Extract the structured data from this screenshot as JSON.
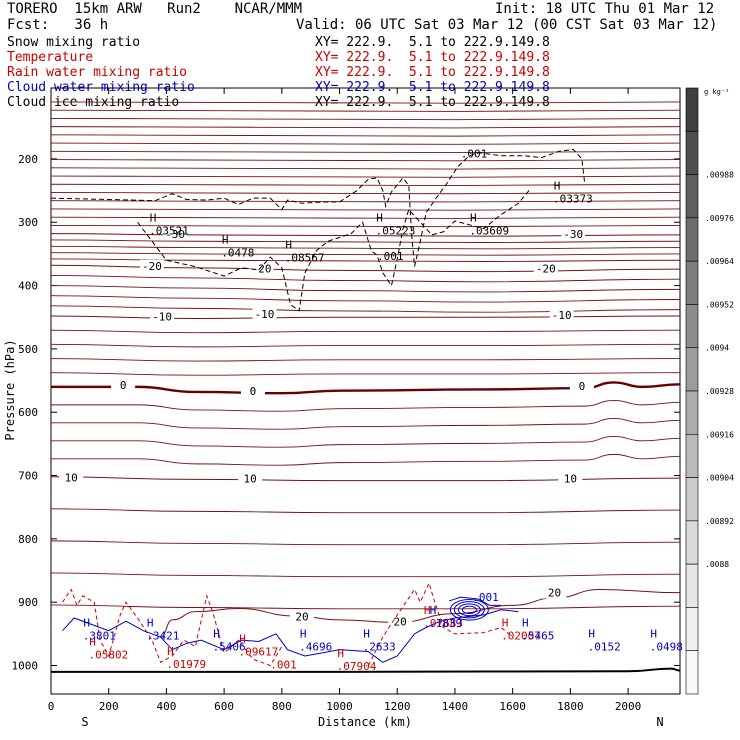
{
  "header": {
    "model": "TORERO  15km ARW   Run2    NCAR/MMM",
    "init": "Init: 18 UTC Thu 01 Mar 12",
    "fcst": "Fcst:   36 h",
    "valid": "Valid: 06 UTC Sat 03 Mar 12 (00 CST Sat 03 Mar 12)"
  },
  "legend": [
    {
      "label": "Snow mixing ratio",
      "color": "#000000",
      "xy": "XY= 222.9.  5.1 to 222.9.149.8",
      "xy_color": "#000000"
    },
    {
      "label": "Temperature",
      "color": "#cc0000",
      "xy": "XY= 222.9.  5.1 to 222.9.149.8",
      "xy_color": "#cc0000"
    },
    {
      "label": "Rain water mixing ratio",
      "color": "#cc0000",
      "xy": "XY= 222.9.  5.1 to 222.9.149.8",
      "xy_color": "#cc0000"
    },
    {
      "label": "Cloud water mixing ratio",
      "color": "#0000cc",
      "xy": "XY= 222.9.  5.1 to 222.9.149.8",
      "xy_color": "#0000cc"
    },
    {
      "label": "Cloud ice mixing ratio",
      "color": "#000000",
      "xy": "XY= 222.9.  5.1 to 222.9.149.8",
      "xy_color": "#000000"
    }
  ],
  "chart_data": {
    "type": "cross-section contour",
    "xlabel": "Distance (km)",
    "ylabel": "Pressure (hPa)",
    "xlim": [
      0,
      2180
    ],
    "ylim": [
      1045,
      88
    ],
    "x_ticks": [
      0,
      200,
      400,
      600,
      800,
      1000,
      1200,
      1400,
      1600,
      1800,
      2000
    ],
    "y_ticks": [
      200,
      300,
      400,
      500,
      600,
      700,
      800,
      900,
      1000
    ],
    "x_end_labels": {
      "left": "S",
      "right": "N"
    },
    "colorbar": {
      "unit": "g kg⁻¹",
      "labels": [
        ".00988",
        ".00976",
        ".00964",
        ".00952",
        ".0094",
        ".00928",
        ".00916",
        ".00904",
        ".00892",
        ".0088"
      ],
      "colors": [
        "#404040",
        "#4f4f4f",
        "#5e5e5e",
        "#6e6e6e",
        "#7d7d7d",
        "#8d8d8d",
        "#9c9c9c",
        "#acacac",
        "#bbbbbb",
        "#cbcbcb",
        "#dadada",
        "#e6e6e6",
        "#f0f0f0",
        "#f8f8f8"
      ]
    },
    "temperature_contours": [
      {
        "label": "-30",
        "positions": [
          [
            430,
            322
          ],
          [
            1810,
            322
          ]
        ],
        "points": [
          [
            0,
            318
          ],
          [
            500,
            320
          ],
          [
            1000,
            321
          ],
          [
            1500,
            322
          ],
          [
            2180,
            320
          ]
        ]
      },
      {
        "label": "-20",
        "positions": [
          [
            350,
            372
          ],
          [
            730,
            376
          ],
          [
            1715,
            376
          ]
        ],
        "points": [
          [
            0,
            368
          ],
          [
            500,
            372
          ],
          [
            1000,
            376
          ],
          [
            1500,
            378
          ],
          [
            2180,
            374
          ]
        ]
      },
      {
        "label": "-10",
        "positions": [
          [
            385,
            452
          ],
          [
            740,
            448
          ],
          [
            1770,
            450
          ]
        ],
        "points": [
          [
            0,
            448
          ],
          [
            500,
            452
          ],
          [
            1000,
            450
          ],
          [
            1500,
            450
          ],
          [
            2180,
            448
          ]
        ]
      },
      {
        "label": "0",
        "positions": [
          [
            250,
            560
          ],
          [
            700,
            570
          ],
          [
            1840,
            562
          ]
        ],
        "points": [
          [
            0,
            560
          ],
          [
            300,
            560
          ],
          [
            500,
            568
          ],
          [
            800,
            570
          ],
          [
            1000,
            566
          ],
          [
            1500,
            564
          ],
          [
            1850,
            562
          ],
          [
            1950,
            553
          ],
          [
            2050,
            560
          ],
          [
            2180,
            556
          ]
        ]
      },
      {
        "label": "10",
        "positions": [
          [
            70,
            706
          ],
          [
            690,
            708
          ],
          [
            1800,
            708
          ]
        ],
        "points": [
          [
            0,
            702
          ],
          [
            500,
            706
          ],
          [
            1000,
            708
          ],
          [
            1500,
            708
          ],
          [
            2180,
            704
          ]
        ]
      },
      {
        "label": "20",
        "positions": [
          [
            870,
            926
          ],
          [
            1210,
            934
          ],
          [
            1745,
            888
          ]
        ],
        "points": [
          [
            380,
            955
          ],
          [
            420,
            928
          ],
          [
            500,
            915
          ],
          [
            650,
            910
          ],
          [
            850,
            922
          ],
          [
            1000,
            928
          ],
          [
            1200,
            932
          ],
          [
            1400,
            918
          ],
          [
            1600,
            905
          ],
          [
            1750,
            893
          ],
          [
            1900,
            880
          ],
          [
            2180,
            885
          ]
        ]
      }
    ],
    "isotherm_count_extra": "each 2 °C between labeled values",
    "snow_maxima": [
      {
        "label": ".03521",
        "x": 340,
        "p": 305
      },
      {
        "label": ".0478",
        "x": 590,
        "p": 340
      },
      {
        "label": ".08567",
        "x": 810,
        "p": 348
      },
      {
        "label": ".05223",
        "x": 1125,
        "p": 305
      },
      {
        "label": ".03609",
        "x": 1450,
        "p": 305
      },
      {
        "label": ".03373",
        "x": 1740,
        "p": 255
      }
    ],
    "snow_labels": [
      {
        "label": ".001",
        "x": 1420,
        "p": 198
      },
      {
        "label": ".001",
        "x": 1130,
        "p": 360
      }
    ],
    "rain_maxima": [
      {
        "label": ".05802",
        "x": 130,
        "p": 975
      },
      {
        "label": ".01979",
        "x": 400,
        "p": 990
      },
      {
        "label": ".09617",
        "x": 650,
        "p": 970
      },
      {
        "label": ".07904",
        "x": 990,
        "p": 993
      },
      {
        "label": ".07683",
        "x": 1290,
        "p": 925
      },
      {
        "label": ".02007",
        "x": 1560,
        "p": 945
      }
    ],
    "rain_labels": [
      {
        "label": ".001",
        "x": 760,
        "p": 1005
      }
    ],
    "cloud_water_maxima": [
      {
        "label": ".3801",
        "x": 110,
        "p": 945
      },
      {
        "label": ".3421",
        "x": 330,
        "p": 945
      },
      {
        "label": ".5406",
        "x": 560,
        "p": 962
      },
      {
        "label": ".4696",
        "x": 860,
        "p": 962
      },
      {
        "label": ".2633",
        "x": 1080,
        "p": 962
      },
      {
        "label": ".1839",
        "x": 1310,
        "p": 925
      },
      {
        "label": ".5465",
        "x": 1630,
        "p": 945
      },
      {
        "label": ".0152",
        "x": 1860,
        "p": 962
      },
      {
        "label": ".0498",
        "x": 2075,
        "p": 962
      }
    ],
    "cloud_water_labels": [
      {
        "label": ".001",
        "x": 1460,
        "p": 898
      }
    ]
  }
}
